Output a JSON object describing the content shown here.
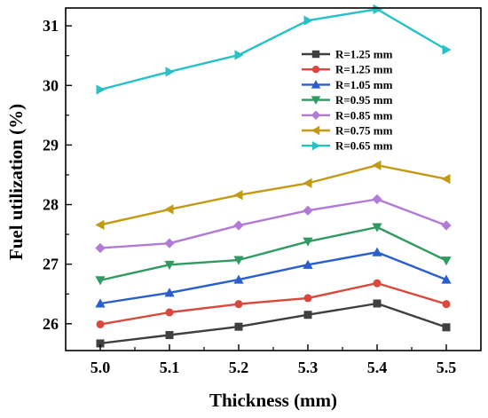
{
  "chart_data": {
    "type": "line",
    "xlabel": "Thickness (mm)",
    "ylabel": "Fuel utilization (%)",
    "x": [
      5.0,
      5.1,
      5.2,
      5.3,
      5.4,
      5.5
    ],
    "x_tick_labels": [
      "5.0",
      "5.1",
      "5.2",
      "5.3",
      "5.4",
      "5.5"
    ],
    "xlim": [
      4.95,
      5.55
    ],
    "y_ticks": [
      26,
      27,
      28,
      29,
      30,
      31
    ],
    "ylim": [
      25.55,
      31.3
    ],
    "grid": false,
    "legend_position": "top-right",
    "series": [
      {
        "name": "R=1.25 mm",
        "color": "#3f3f3f",
        "marker": "square",
        "values": [
          25.67,
          25.81,
          25.95,
          26.15,
          26.34,
          25.94
        ]
      },
      {
        "name": "R=1.25 mm",
        "color": "#d9483b",
        "marker": "circle",
        "values": [
          25.99,
          26.19,
          26.33,
          26.43,
          26.68,
          26.33
        ]
      },
      {
        "name": "R=1.05 mm",
        "color": "#2a5ecf",
        "marker": "triangle-up",
        "values": [
          26.34,
          26.52,
          26.74,
          26.99,
          27.2,
          26.74
        ]
      },
      {
        "name": "R=0.95 mm",
        "color": "#2f9a62",
        "marker": "triangle-down",
        "values": [
          26.73,
          26.99,
          27.07,
          27.38,
          27.62,
          27.06
        ]
      },
      {
        "name": "R=0.85 mm",
        "color": "#b07ad6",
        "marker": "diamond",
        "values": [
          27.27,
          27.35,
          27.65,
          27.9,
          28.09,
          27.65
        ]
      },
      {
        "name": "R=0.75 mm",
        "color": "#c49a14",
        "marker": "triangle-left",
        "values": [
          27.66,
          27.92,
          28.16,
          28.36,
          28.66,
          28.43
        ]
      },
      {
        "name": "R=0.65 mm",
        "color": "#26c2c7",
        "marker": "triangle-right",
        "values": [
          29.93,
          30.23,
          30.51,
          31.09,
          31.28,
          30.6
        ]
      }
    ]
  }
}
